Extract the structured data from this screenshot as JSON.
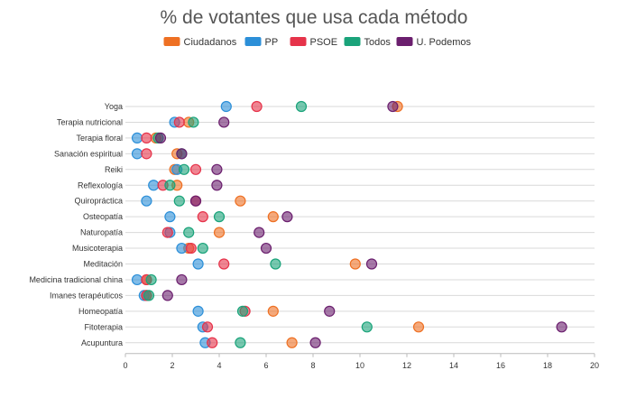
{
  "chart_data": {
    "type": "scatter",
    "title": "% de votantes que usa cada método",
    "xlim": [
      0,
      20
    ],
    "xticks": [
      0,
      2,
      4,
      6,
      8,
      10,
      12,
      14,
      16,
      18,
      20
    ],
    "grid": true,
    "legend_position": "top-center",
    "categories": [
      "Yoga",
      "Terapia nutricional",
      "Terapia floral",
      "Sanación espiritual",
      "Reiki",
      "Reflexología",
      "Quiropráctica",
      "Osteopatía",
      "Naturopatía",
      "Musicoterapia",
      "Meditación",
      "Medicina tradicional china",
      "Imanes terapéuticos",
      "Homeopatía",
      "Fitoterapia",
      "Acupuntura"
    ],
    "series": [
      {
        "name": "Ciudadanos",
        "color": "#ee7023",
        "values": [
          11.6,
          2.7,
          1.3,
          2.2,
          2.1,
          2.2,
          4.9,
          6.3,
          4.0,
          2.7,
          9.8,
          0.9,
          0.9,
          6.3,
          12.5,
          7.1
        ]
      },
      {
        "name": "PP",
        "color": "#2c8fd8",
        "values": [
          4.3,
          2.1,
          0.5,
          0.5,
          2.2,
          1.2,
          0.9,
          1.9,
          1.9,
          2.4,
          3.1,
          0.5,
          0.8,
          3.1,
          3.3,
          3.4
        ]
      },
      {
        "name": "PSOE",
        "color": "#e6334a",
        "values": [
          5.6,
          2.3,
          0.9,
          0.9,
          3.0,
          1.6,
          3.0,
          3.3,
          1.8,
          2.8,
          4.2,
          0.9,
          0.9,
          5.1,
          3.5,
          3.7
        ]
      },
      {
        "name": "Todos",
        "color": "#1aa37a",
        "values": [
          7.5,
          2.9,
          1.4,
          2.4,
          2.5,
          1.9,
          2.3,
          4.0,
          2.7,
          3.3,
          6.4,
          1.1,
          1.0,
          5.0,
          10.3,
          4.9
        ]
      },
      {
        "name": "U. Podemos",
        "color": "#6b1f6e",
        "values": [
          11.4,
          4.2,
          1.5,
          2.4,
          3.9,
          3.9,
          3.0,
          6.9,
          5.7,
          6.0,
          10.5,
          2.4,
          1.8,
          8.7,
          18.6,
          8.1
        ]
      }
    ]
  }
}
